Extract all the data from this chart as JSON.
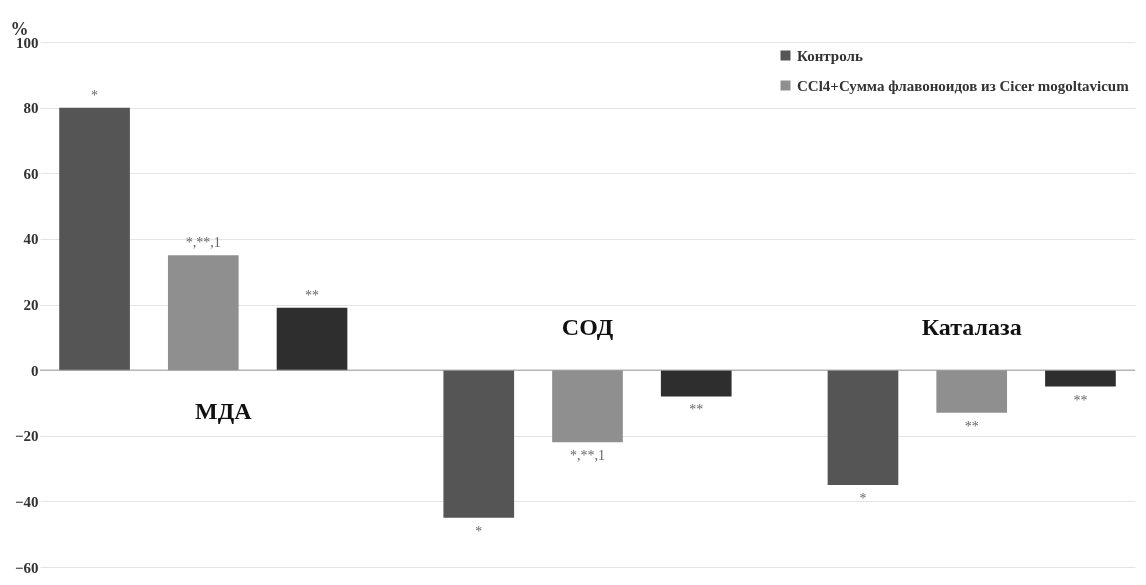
{
  "chart_data": {
    "type": "bar",
    "ylabel": "%",
    "categories": [
      "МДА",
      "СОД",
      "Каталаза"
    ],
    "series": [
      {
        "name": "Контроль",
        "color": "#555555",
        "values": [
          80,
          -45,
          -35
        ],
        "value_labels": [
          "*",
          "*",
          "*"
        ]
      },
      {
        "name": "CCl4+Сумма флавоноидов из Cicer mogoltavicum",
        "color": "#8f8f8f",
        "values": [
          35,
          -22,
          -13
        ]
      },
      {
        "color": "#2e2e2e",
        "values": [
          19,
          -8,
          -5
        ],
        "value_labels": [
          "**",
          "**",
          "**"
        ]
      }
    ],
    "ylim": [
      -60,
      100
    ],
    "yticks": [
      -60,
      -40,
      -20,
      0,
      20,
      40,
      60,
      80,
      100
    ],
    "grid": "y",
    "legend": "top right",
    "annotations": [
      {
        "text": "*,**,1",
        "x": "МДА",
        "y": 35
      },
      {
        "text": "*,**,1",
        "x": "СОД",
        "y": -22
      },
      {
        "text": "**",
        "x": "Каталаза",
        "y": -13
      }
    ]
  }
}
